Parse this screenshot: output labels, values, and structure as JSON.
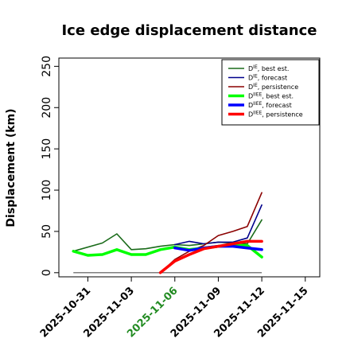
{
  "chart_data": {
    "type": "line",
    "title": "Ice edge displacement distance",
    "xlabel": "",
    "ylabel": "Displacement (km)",
    "ylim": [
      -5,
      260
    ],
    "xlim": [
      "2025-10-29",
      "2025-11-16"
    ],
    "yticks": [
      0,
      50,
      100,
      150,
      200,
      250
    ],
    "xticks": [
      {
        "date": "2025-10-31",
        "label": "2025-10-31",
        "color": "#000000"
      },
      {
        "date": "2025-11-03",
        "label": "2025-11-03",
        "color": "#000000"
      },
      {
        "date": "2025-11-06",
        "label": "2025-11-06",
        "color": "#228B22"
      },
      {
        "date": "2025-11-09",
        "label": "2025-11-09",
        "color": "#000000"
      },
      {
        "date": "2025-11-12",
        "label": "2025-11-12",
        "color": "#000000"
      },
      {
        "date": "2025-11-15",
        "label": "2025-11-15",
        "color": "#000000"
      }
    ],
    "baseline": {
      "x": [
        "2025-10-30",
        "2025-11-12"
      ],
      "y": [
        0,
        0
      ],
      "color": "#555555"
    },
    "legend_position": "top-right",
    "series": [
      {
        "name": "best est.",
        "symbol": "IE",
        "color": "#1a6b1a",
        "width": 1.6,
        "x": [
          "2025-10-30",
          "2025-11-01",
          "2025-11-02",
          "2025-11-03",
          "2025-11-04",
          "2025-11-05",
          "2025-11-06",
          "2025-11-07",
          "2025-11-08",
          "2025-11-09",
          "2025-11-10",
          "2025-11-11",
          "2025-11-12"
        ],
        "y": [
          26,
          36,
          47,
          28,
          29,
          32,
          34,
          33,
          35,
          37,
          36,
          35,
          64
        ]
      },
      {
        "name": "forecast",
        "symbol": "IE",
        "color": "#00008b",
        "width": 1.6,
        "x": [
          "2025-11-06",
          "2025-11-07",
          "2025-11-08",
          "2025-11-09",
          "2025-11-10",
          "2025-11-11",
          "2025-11-12"
        ],
        "y": [
          34,
          38,
          35,
          37,
          37,
          42,
          82
        ]
      },
      {
        "name": "persistence",
        "symbol": "IE",
        "color": "#8b0000",
        "width": 1.6,
        "x": [
          "2025-11-05",
          "2025-11-06",
          "2025-11-07",
          "2025-11-08",
          "2025-11-09",
          "2025-11-10",
          "2025-11-11",
          "2025-11-12"
        ],
        "y": [
          0,
          16,
          26,
          33,
          45,
          50,
          56,
          97
        ]
      },
      {
        "name": "best est.",
        "symbol": "IIEE",
        "color": "#00ff00",
        "width": 3.5,
        "x": [
          "2025-10-30",
          "2025-10-31",
          "2025-11-01",
          "2025-11-02",
          "2025-11-03",
          "2025-11-04",
          "2025-11-05",
          "2025-11-06",
          "2025-11-07",
          "2025-11-08",
          "2025-11-09",
          "2025-11-10",
          "2025-11-11",
          "2025-11-12"
        ],
        "y": [
          26,
          21,
          22,
          28,
          22,
          22,
          28,
          31,
          28,
          30,
          32,
          33,
          33,
          19
        ]
      },
      {
        "name": "forecast",
        "symbol": "IIEE",
        "color": "#0000ff",
        "width": 3.5,
        "x": [
          "2025-11-06",
          "2025-11-07",
          "2025-11-08",
          "2025-11-09",
          "2025-11-10",
          "2025-11-11",
          "2025-11-12"
        ],
        "y": [
          30,
          27,
          30,
          32,
          32,
          30,
          28
        ]
      },
      {
        "name": "persistence",
        "symbol": "IIEE",
        "color": "#ff0000",
        "width": 3.5,
        "x": [
          "2025-11-05",
          "2025-11-06",
          "2025-11-07",
          "2025-11-08",
          "2025-11-09",
          "2025-11-10",
          "2025-11-11",
          "2025-11-12"
        ],
        "y": [
          0,
          14,
          22,
          29,
          32,
          35,
          38,
          38
        ]
      }
    ]
  }
}
